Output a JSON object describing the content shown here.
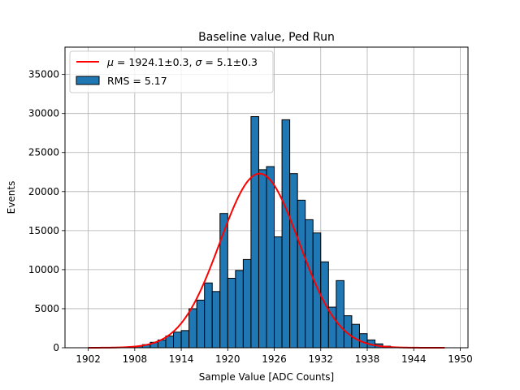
{
  "chart_data": {
    "type": "bar",
    "title": "Baseline value, Ped Run",
    "xlabel": "Sample Value [ADC Counts]",
    "ylabel": "Events",
    "xlim": [
      1899,
      1951
    ],
    "ylim": [
      0,
      38500
    ],
    "xticks": [
      1902,
      1908,
      1914,
      1920,
      1926,
      1932,
      1938,
      1944,
      1950
    ],
    "yticks": [
      0,
      5000,
      10000,
      15000,
      20000,
      25000,
      30000,
      35000
    ],
    "grid": true,
    "legend_position": "top-left",
    "bin_width": 1,
    "histogram": {
      "name": "RMS = 5.17",
      "color": "#1f77b4",
      "edge_color": "#000000",
      "bin_start": [
        1902,
        1903,
        1904,
        1905,
        1906,
        1907,
        1908,
        1909,
        1910,
        1911,
        1912,
        1913,
        1914,
        1915,
        1916,
        1917,
        1918,
        1919,
        1920,
        1921,
        1922,
        1923,
        1924,
        1925,
        1926,
        1927,
        1928,
        1929,
        1930,
        1931,
        1932,
        1933,
        1934,
        1935,
        1936,
        1937,
        1938,
        1939,
        1940,
        1941,
        1942,
        1943,
        1944,
        1945,
        1946,
        1947
      ],
      "counts": [
        0,
        0,
        0,
        0,
        0,
        100,
        200,
        400,
        700,
        1000,
        1500,
        2000,
        2200,
        5000,
        6100,
        8300,
        7200,
        17200,
        8900,
        9900,
        11300,
        29600,
        22800,
        23200,
        14200,
        29200,
        22300,
        18900,
        16400,
        14700,
        11000,
        5200,
        8600,
        4100,
        3000,
        1800,
        1000,
        500,
        200,
        50,
        0,
        0,
        0,
        0,
        0,
        0
      ]
    },
    "fit": {
      "name": "$\\mu = 1924.1$±0.3, $\\sigma = 5.1$±0.3",
      "mu": 1924.1,
      "sigma": 5.1,
      "amplitude": 22300,
      "x_range": [
        1902,
        1948
      ],
      "color": "#ff0000"
    }
  },
  "legend": {
    "fit_label": {
      "mu_symbol": "μ",
      "mu_value": " = 1924.1±0.3, ",
      "sigma_symbol": "σ",
      "sigma_value": " = 5.1±0.3"
    },
    "hist_label": "RMS = 5.17"
  }
}
